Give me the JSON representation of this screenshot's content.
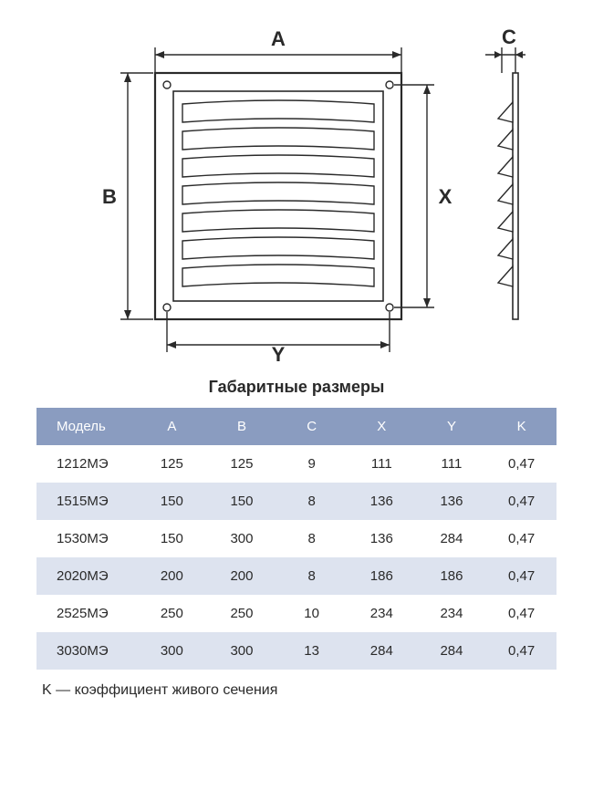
{
  "diagram": {
    "labels": {
      "A": "A",
      "B": "B",
      "C": "C",
      "X": "X",
      "Y": "Y"
    },
    "stroke_color": "#2a2a2a",
    "stroke_width": 1.4,
    "label_fontsize": 20,
    "label_fontweight": "bold",
    "background": "#ffffff"
  },
  "title": "Габаритные размеры",
  "table": {
    "header_bg": "#8a9cc0",
    "header_color": "#ffffff",
    "row_even_bg": "#dde3ef",
    "row_odd_bg": "#ffffff",
    "text_color": "#2a2a2a",
    "columns": [
      "Модель",
      "A",
      "B",
      "C",
      "X",
      "Y",
      "K"
    ],
    "rows": [
      [
        "1212МЭ",
        "125",
        "125",
        "9",
        "111",
        "111",
        "0,47"
      ],
      [
        "1515МЭ",
        "150",
        "150",
        "8",
        "136",
        "136",
        "0,47"
      ],
      [
        "1530МЭ",
        "150",
        "300",
        "8",
        "136",
        "284",
        "0,47"
      ],
      [
        "2020МЭ",
        "200",
        "200",
        "8",
        "186",
        "186",
        "0,47"
      ],
      [
        "2525МЭ",
        "250",
        "250",
        "10",
        "234",
        "234",
        "0,47"
      ],
      [
        "3030МЭ",
        "300",
        "300",
        "13",
        "284",
        "284",
        "0,47"
      ]
    ]
  },
  "footnote": "K — коэффициент живого сечения"
}
